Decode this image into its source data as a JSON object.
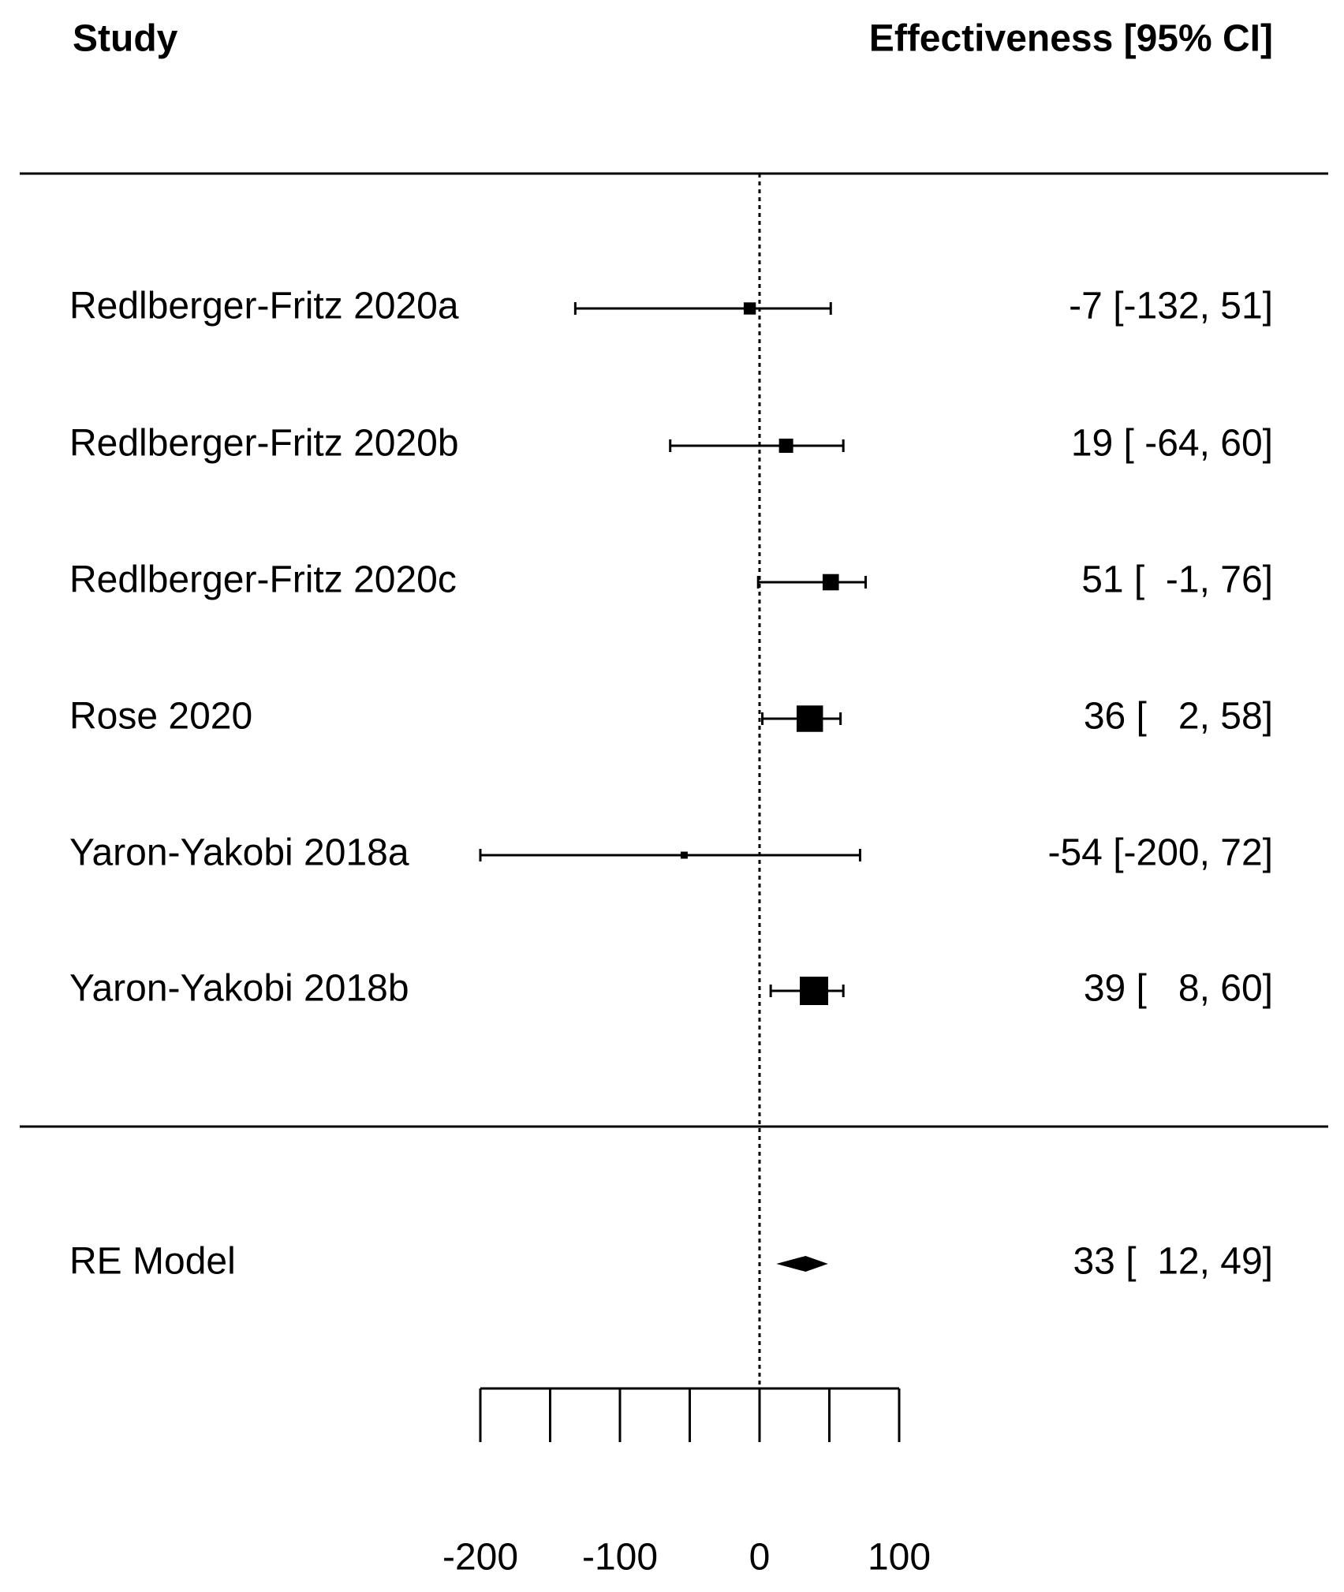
{
  "chart_data": {
    "type": "forest",
    "study_header": "Study",
    "effect_header": "Effectiveness [95% CI]",
    "studies": [
      "Redlberger-Fritz 2020a",
      "Redlberger-Fritz 2020b",
      "Redlberger-Fritz 2020c",
      "Rose 2020",
      "Yaron-Yakobi 2018a",
      "Yaron-Yakobi 2018b"
    ],
    "estimates": [
      -7,
      19,
      51,
      36,
      -54,
      39
    ],
    "lower": [
      -132,
      -64,
      -1,
      2,
      -200,
      8
    ],
    "upper": [
      51,
      60,
      76,
      58,
      72,
      60
    ],
    "weights": [
      6.8,
      9.3,
      12.2,
      32.1,
      2.3,
      37.2
    ],
    "value_labels": [
      "-7 [-132, 51]",
      "19 [ -64, 60]",
      "51 [  -1, 76]",
      "36 [   2, 58]",
      "-54 [-200, 72]",
      "39 [   8, 60]"
    ],
    "summary": {
      "name": "RE Model",
      "estimate": 33,
      "lower": 12,
      "upper": 49,
      "value_label": "33 [  12, 49]"
    },
    "reference_line": 0,
    "xlim": [
      -200,
      100
    ],
    "xticks": [
      -200,
      -100,
      0,
      100
    ],
    "minor_xticks": [
      -150,
      -50,
      50
    ],
    "color": "#000000"
  }
}
